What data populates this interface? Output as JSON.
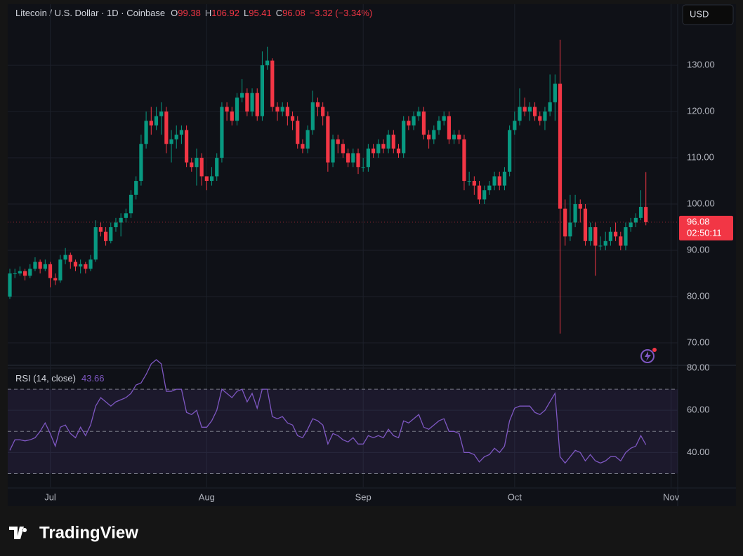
{
  "source": "TradingView",
  "currency": "USD",
  "timer": "02:50:11",
  "chart_data": [
    {
      "type": "candlestick",
      "title": "Litecoin / U.S. Dollar · 1D · Coinbase",
      "open_label": "O",
      "high_label": "H",
      "low_label": "L",
      "close_label": "C",
      "change": "−3.32 (−3.34%)",
      "up_color": "#089981",
      "down_color": "#f23645",
      "xlim": [
        -0.42,
        132.3
      ],
      "ylim": [
        65.3,
        143.2
      ],
      "yticks": [
        {
          "value": 70,
          "label": "70.00"
        },
        {
          "value": 80,
          "label": "80.00"
        },
        {
          "value": 90,
          "label": "90.00"
        },
        {
          "value": 100,
          "label": "100.00"
        },
        {
          "value": 110,
          "label": "110.00"
        },
        {
          "value": 120,
          "label": "120.00"
        },
        {
          "value": 130,
          "label": "130.00"
        }
      ],
      "open": [
        80,
        85,
        85,
        85.5,
        84.5,
        86,
        87.5,
        86,
        87,
        84,
        83.5,
        88,
        89,
        87.5,
        86.5,
        87,
        86,
        88,
        95,
        94,
        92,
        95,
        96,
        97,
        98,
        102,
        105,
        113,
        118,
        117,
        119,
        120,
        113,
        114,
        115,
        116,
        109,
        108,
        110,
        106,
        105,
        106,
        110,
        121,
        120,
        118,
        123,
        124,
        120,
        124,
        119,
        130,
        131,
        121,
        120,
        121,
        119,
        118,
        113,
        112,
        116,
        122,
        121,
        119,
        109,
        114,
        113,
        111,
        109,
        111,
        108,
        108,
        112,
        111,
        113,
        112,
        115,
        112,
        111,
        118,
        117,
        119,
        120,
        115,
        114,
        116,
        118,
        119,
        114,
        115,
        114,
        105,
        105,
        104,
        101,
        103,
        104,
        106,
        104,
        107,
        116,
        118,
        121,
        120,
        121,
        119,
        118,
        120,
        122,
        126,
        99,
        93,
        96,
        100,
        99,
        92,
        95,
        91,
        91,
        92,
        94,
        93,
        91,
        95,
        96,
        97,
        99.38
      ],
      "high": [
        86,
        86,
        86.5,
        86,
        87,
        88.5,
        88,
        88,
        87.5,
        85,
        89,
        90.5,
        89.5,
        88,
        88,
        87.5,
        89,
        96.5,
        96,
        95,
        96,
        97,
        98,
        99,
        103,
        106,
        115,
        120,
        121,
        121,
        122,
        121,
        116,
        117,
        117,
        117,
        110,
        112,
        111,
        106,
        108,
        111,
        122,
        122,
        121,
        124,
        127,
        125,
        125,
        125,
        133,
        134,
        131.5,
        122,
        122,
        122,
        120,
        119,
        114,
        117,
        124.5,
        123,
        122,
        120,
        115,
        115,
        114,
        112,
        112,
        112,
        110,
        113,
        113,
        114,
        114,
        116,
        116,
        113,
        119,
        119,
        120,
        121,
        121,
        116,
        117,
        119,
        120,
        120,
        116,
        116,
        115,
        107,
        106,
        105,
        104,
        105,
        107,
        107,
        108,
        117,
        120,
        125,
        123,
        122,
        122,
        120,
        121,
        128,
        128,
        135.5,
        101,
        102,
        102,
        101,
        100,
        96,
        96,
        93,
        94,
        95,
        96,
        94,
        96,
        97,
        98,
        103,
        106.92
      ],
      "low": [
        79.5,
        84,
        84.5,
        83.5,
        84,
        85.5,
        85,
        85.5,
        82,
        82.5,
        83,
        87,
        86,
        85.5,
        85,
        85,
        85.5,
        87.5,
        93,
        91,
        91.5,
        94,
        93,
        96,
        97,
        101,
        104,
        112,
        115,
        116,
        115,
        111,
        109,
        112,
        113,
        108,
        107,
        104,
        104,
        103,
        104,
        105,
        109,
        118,
        117,
        117,
        122,
        119,
        119,
        118,
        118,
        129,
        120,
        118,
        119,
        117,
        116,
        112,
        111,
        111,
        115,
        119,
        117,
        107,
        108,
        111,
        110,
        108,
        108,
        106.5,
        107,
        107,
        110,
        110,
        111,
        111,
        111,
        110,
        110,
        116,
        116,
        118,
        114,
        112,
        113,
        115,
        117,
        113,
        113,
        113,
        103,
        104,
        102,
        100,
        100,
        102,
        103,
        103,
        103,
        106,
        115,
        117,
        119,
        118,
        118,
        117,
        116,
        119,
        118,
        72,
        91,
        92,
        95,
        96,
        91,
        91,
        84.5,
        90,
        90,
        91,
        92,
        90,
        90,
        94,
        95,
        96.5,
        95.41
      ],
      "close": [
        85,
        85,
        85.5,
        84.5,
        86,
        87.5,
        86,
        87,
        84,
        83.5,
        88,
        89,
        87.5,
        86.5,
        87,
        86,
        88,
        95,
        94,
        92,
        95,
        96,
        97,
        98,
        102,
        105,
        113,
        118,
        117,
        119,
        120,
        113,
        114,
        115,
        116,
        109,
        108,
        110,
        106,
        105,
        106,
        110,
        121,
        120,
        118,
        123,
        124,
        120,
        124,
        119,
        130,
        131,
        121,
        120,
        121,
        119,
        118,
        113,
        112,
        116,
        122,
        121,
        119,
        109,
        114,
        113,
        111,
        109,
        111,
        108,
        108,
        112,
        111,
        113,
        112,
        115,
        112,
        111,
        118,
        117,
        119,
        120,
        115,
        114,
        116,
        118,
        119,
        114,
        115,
        114,
        105,
        105,
        104,
        101,
        103,
        104,
        106,
        104,
        107,
        116,
        118,
        121,
        120,
        121,
        119,
        118,
        120,
        122,
        126,
        99,
        93,
        96,
        100,
        99,
        92,
        95,
        91,
        91,
        92,
        94,
        93,
        91,
        95,
        96,
        97,
        99.4,
        96.08
      ]
    },
    {
      "type": "line",
      "name": "RSI (14, close)",
      "color": "#7e57c2",
      "levels": [
        70,
        50,
        30
      ],
      "xlim": [
        -0.42,
        132.3
      ],
      "ylim": [
        23.5,
        81
      ],
      "yticks": [
        {
          "value": 40,
          "label": "40.00"
        },
        {
          "value": 60,
          "label": "60.00"
        },
        {
          "value": 80,
          "label": "80.00"
        }
      ],
      "xticks": [
        {
          "value": 8,
          "label": "Jul"
        },
        {
          "value": 39,
          "label": "Aug"
        },
        {
          "value": 70,
          "label": "Sep"
        },
        {
          "value": 100,
          "label": "Oct"
        },
        {
          "value": 131,
          "label": "Nov"
        }
      ],
      "values": [
        41,
        46,
        46,
        45.5,
        46,
        47,
        50,
        54,
        49,
        43,
        52,
        53,
        49,
        47,
        52,
        48,
        53,
        62,
        66,
        64,
        62,
        64,
        65,
        66,
        68,
        72,
        73,
        77,
        82,
        84,
        82,
        69,
        69,
        70,
        70,
        59,
        58,
        60,
        52,
        52,
        55,
        60,
        70,
        68,
        66,
        69,
        70,
        64,
        68,
        61,
        70,
        70,
        57,
        56,
        57,
        54,
        53,
        48,
        47,
        51,
        56,
        55,
        53,
        44,
        49,
        48,
        46,
        45,
        47,
        44,
        44,
        48,
        47,
        48,
        47,
        51,
        48,
        47,
        55,
        54,
        56,
        58,
        52,
        51,
        53,
        55,
        56,
        50,
        50,
        49,
        40,
        40,
        39,
        35.5,
        38,
        39,
        42,
        40,
        43,
        55,
        61,
        62,
        62,
        62,
        59,
        58,
        60,
        64,
        68,
        38,
        35,
        38,
        41,
        40,
        36,
        39,
        36,
        35,
        36,
        38,
        38,
        36,
        40,
        42,
        43,
        48,
        43.66
      ]
    }
  ]
}
